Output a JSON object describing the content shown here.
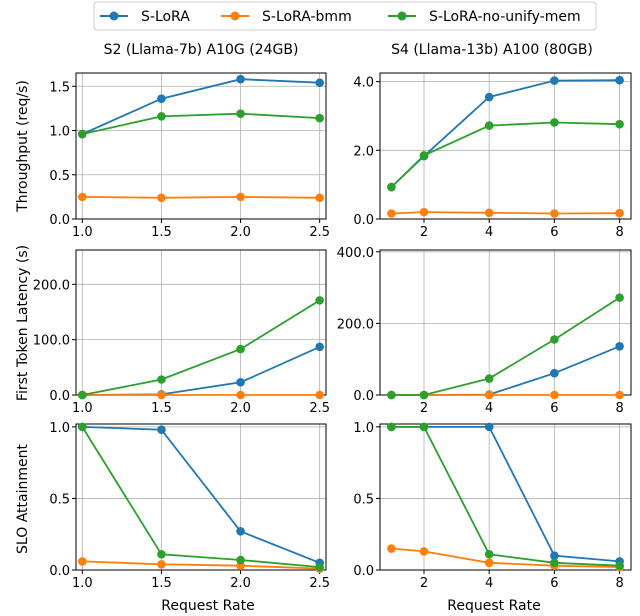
{
  "legend": [
    {
      "name": "S-LoRA",
      "color": "#1f77b4"
    },
    {
      "name": "S-LoRA-bmm",
      "color": "#ff7f0e"
    },
    {
      "name": "S-LoRA-no-unify-mem",
      "color": "#2ca02c"
    }
  ],
  "columns": [
    {
      "title": "S2 (Llama-7b) A10G (24GB)"
    },
    {
      "title": "S4 (Llama-13b) A100 (80GB)"
    }
  ],
  "row_labels": [
    "Throughput (req/s)",
    "First Token Latency (s)",
    "SLO Attainment"
  ],
  "xlabel": "Request Rate",
  "chart_data": [
    {
      "type": "line",
      "grid": true,
      "legend_position": "top",
      "title": "S2 (Llama-7b) A10G (24GB)",
      "ylabel": "Throughput (req/s)",
      "xlabel": "",
      "x": [
        1.0,
        1.5,
        2.0,
        2.5
      ],
      "xticks": [
        "1.0",
        "1.5",
        "2.0",
        "2.5"
      ],
      "xlim": [
        0.96,
        2.54
      ],
      "yticks": [
        0.0,
        0.5,
        1.0,
        1.5
      ],
      "ytick_labels": [
        "0.0",
        "0.5",
        "1.0",
        "1.5"
      ],
      "ylim": [
        0,
        1.65
      ],
      "series": [
        {
          "name": "S-LoRA",
          "values": [
            0.96,
            1.36,
            1.58,
            1.54
          ]
        },
        {
          "name": "S-LoRA-bmm",
          "values": [
            0.25,
            0.24,
            0.25,
            0.24
          ]
        },
        {
          "name": "S-LoRA-no-unify-mem",
          "values": [
            0.96,
            1.16,
            1.19,
            1.14
          ]
        }
      ]
    },
    {
      "type": "line",
      "grid": true,
      "title": "S4 (Llama-13b) A100 (80GB)",
      "ylabel": "",
      "xlabel": "",
      "x": [
        1,
        2,
        4,
        6,
        8
      ],
      "xticks": [
        "2",
        "4",
        "6",
        "8"
      ],
      "xtick_values": [
        2,
        4,
        6,
        8
      ],
      "xlim": [
        0.65,
        8.35
      ],
      "yticks": [
        0.0,
        2.0,
        4.0
      ],
      "ytick_labels": [
        "0.0",
        "2.0",
        "4.0"
      ],
      "ylim": [
        0,
        4.25
      ],
      "series": [
        {
          "name": "S-LoRA",
          "values": [
            0.93,
            1.83,
            3.55,
            4.03,
            4.04
          ]
        },
        {
          "name": "S-LoRA-bmm",
          "values": [
            0.16,
            0.2,
            0.18,
            0.16,
            0.17
          ]
        },
        {
          "name": "S-LoRA-no-unify-mem",
          "values": [
            0.93,
            1.85,
            2.72,
            2.81,
            2.76
          ]
        }
      ]
    },
    {
      "type": "line",
      "grid": true,
      "title": "",
      "ylabel": "First Token Latency (s)",
      "xlabel": "",
      "x": [
        1.0,
        1.5,
        2.0,
        2.5
      ],
      "xticks": [
        "1.0",
        "1.5",
        "2.0",
        "2.5"
      ],
      "xlim": [
        0.96,
        2.54
      ],
      "yticks": [
        0,
        100,
        200
      ],
      "ytick_labels": [
        "0.0",
        "100.0",
        "200.0"
      ],
      "ylim": [
        0,
        262
      ],
      "series": [
        {
          "name": "S-LoRA",
          "values": [
            0,
            1,
            23,
            87
          ]
        },
        {
          "name": "S-LoRA-bmm",
          "values": [
            0,
            0,
            0,
            0
          ]
        },
        {
          "name": "S-LoRA-no-unify-mem",
          "values": [
            0,
            28,
            83,
            171
          ]
        }
      ]
    },
    {
      "type": "line",
      "grid": true,
      "title": "",
      "ylabel": "",
      "xlabel": "",
      "x": [
        1,
        2,
        4,
        6,
        8
      ],
      "xticks": [
        "2",
        "4",
        "6",
        "8"
      ],
      "xtick_values": [
        2,
        4,
        6,
        8
      ],
      "xlim": [
        0.65,
        8.35
      ],
      "yticks": [
        0,
        200,
        400
      ],
      "ytick_labels": [
        "0.0",
        "200.0",
        "400.0"
      ],
      "ylim": [
        0,
        405
      ],
      "series": [
        {
          "name": "S-LoRA",
          "values": [
            0,
            0,
            1,
            61,
            136
          ]
        },
        {
          "name": "S-LoRA-bmm",
          "values": [
            0,
            0,
            0,
            0,
            0
          ]
        },
        {
          "name": "S-LoRA-no-unify-mem",
          "values": [
            0,
            0,
            46,
            155,
            272
          ]
        }
      ]
    },
    {
      "type": "line",
      "grid": true,
      "title": "",
      "ylabel": "SLO Attainment",
      "xlabel": "Request Rate",
      "x": [
        1.0,
        1.5,
        2.0,
        2.5
      ],
      "xticks": [
        "1.0",
        "1.5",
        "2.0",
        "2.5"
      ],
      "xlim": [
        0.96,
        2.54
      ],
      "yticks": [
        0.0,
        0.5,
        1.0
      ],
      "ytick_labels": [
        "0.0",
        "0.5",
        "1.0"
      ],
      "ylim": [
        0,
        1.02
      ],
      "series": [
        {
          "name": "S-LoRA",
          "values": [
            1.0,
            0.98,
            0.27,
            0.05
          ]
        },
        {
          "name": "S-LoRA-bmm",
          "values": [
            0.06,
            0.04,
            0.03,
            0.01
          ]
        },
        {
          "name": "S-LoRA-no-unify-mem",
          "values": [
            1.0,
            0.11,
            0.07,
            0.02
          ]
        }
      ]
    },
    {
      "type": "line",
      "grid": true,
      "title": "",
      "ylabel": "",
      "xlabel": "Request Rate",
      "x": [
        1,
        2,
        4,
        6,
        8
      ],
      "xticks": [
        "2",
        "4",
        "6",
        "8"
      ],
      "xtick_values": [
        2,
        4,
        6,
        8
      ],
      "xlim": [
        0.65,
        8.35
      ],
      "yticks": [
        0.0,
        0.5,
        1.0
      ],
      "ytick_labels": [
        "0.0",
        "0.5",
        "1.0"
      ],
      "ylim": [
        0,
        1.02
      ],
      "series": [
        {
          "name": "S-LoRA",
          "values": [
            1.0,
            1.0,
            1.0,
            0.1,
            0.06
          ]
        },
        {
          "name": "S-LoRA-bmm",
          "values": [
            0.15,
            0.13,
            0.05,
            0.03,
            0.02
          ]
        },
        {
          "name": "S-LoRA-no-unify-mem",
          "values": [
            1.0,
            1.0,
            0.11,
            0.05,
            0.03
          ]
        }
      ]
    }
  ]
}
